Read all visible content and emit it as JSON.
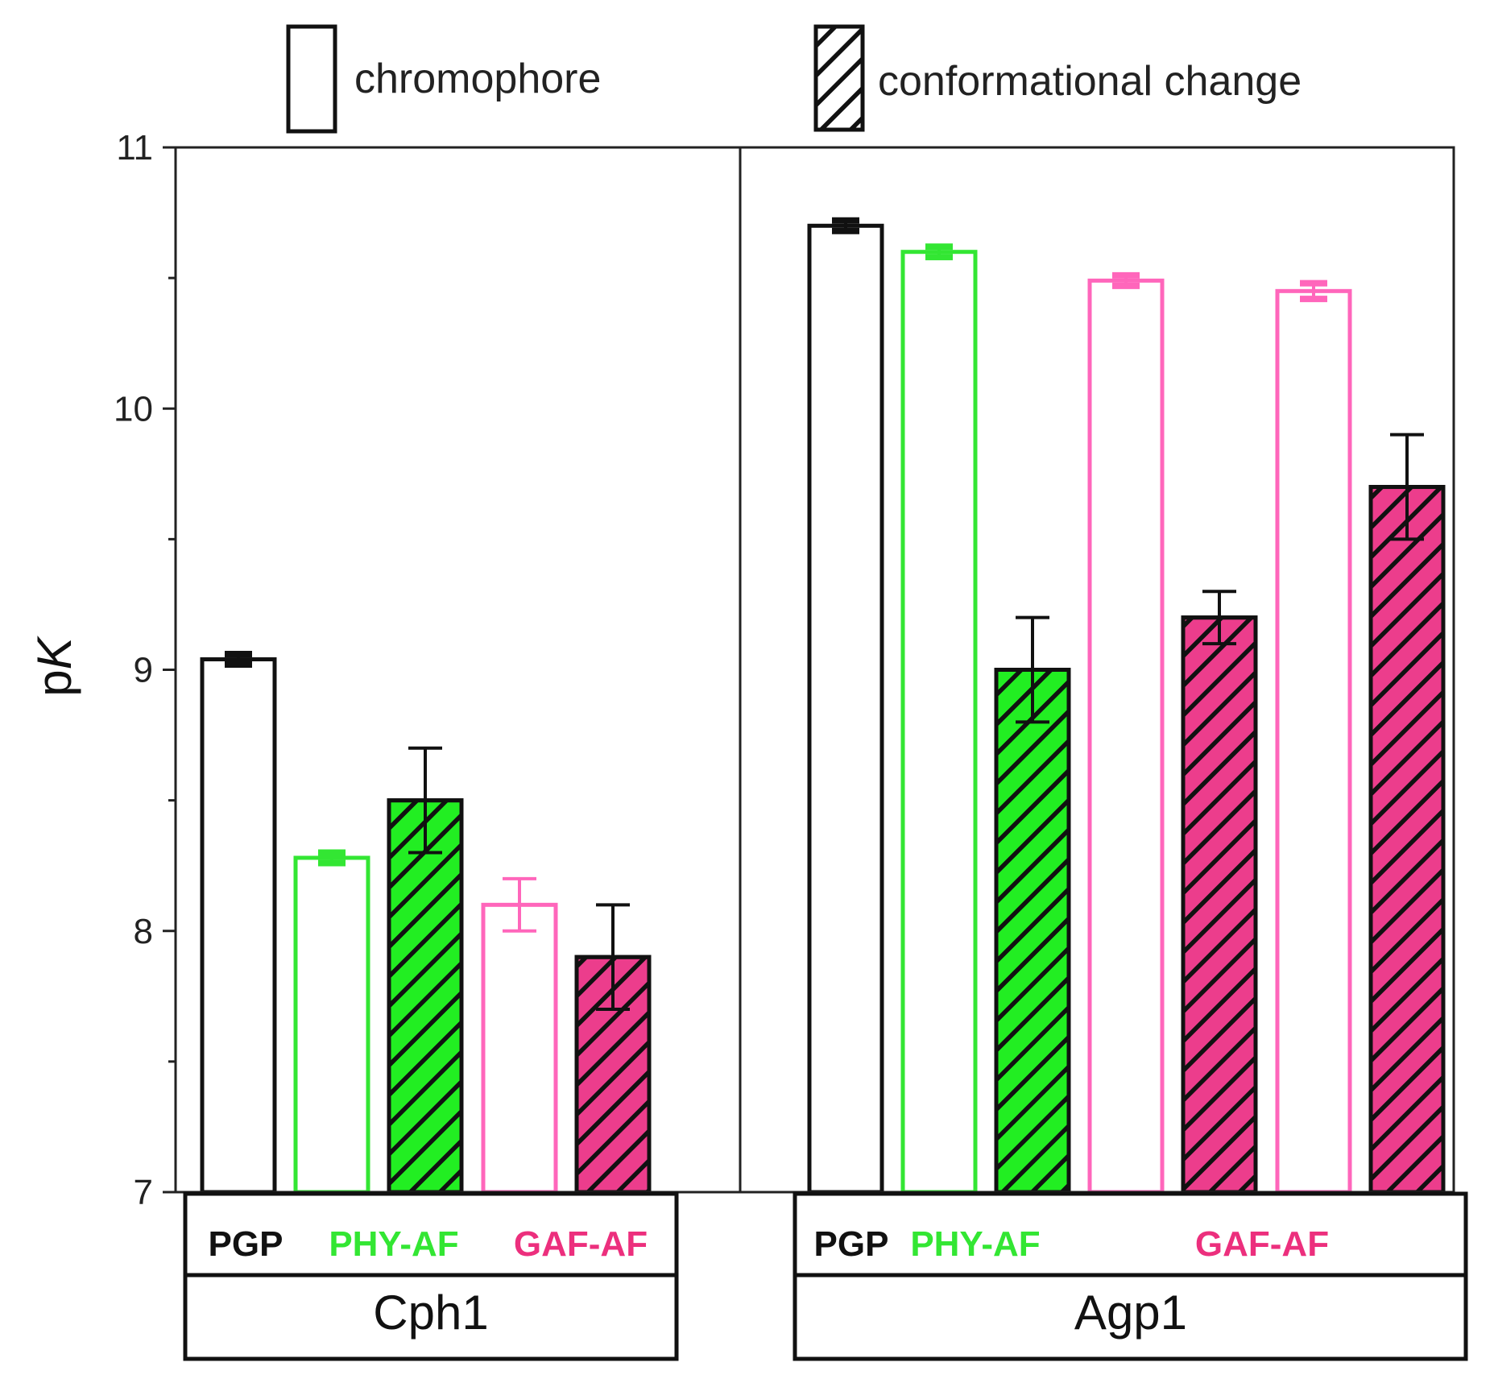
{
  "chart_data": {
    "type": "bar",
    "ylabel_prefix": "p",
    "ylabel_italic": "K",
    "ylim": [
      7,
      11
    ],
    "yticks": [
      7,
      8,
      9,
      10,
      11
    ],
    "ytick_labels": [
      "7",
      "8",
      "9",
      "10",
      "11"
    ],
    "legend": [
      {
        "label": "chromophore",
        "pattern": "open"
      },
      {
        "label": "conformational change",
        "pattern": "hatched"
      }
    ],
    "colors": {
      "PGP": "#111111",
      "PHY-AF": "#33e633",
      "GAF-AF": "#ec2f7d",
      "GAF-AF-outline": "#ff66bb",
      "PHY-AF-fill": "#22ee22",
      "GAF-AF-fill": "#ec3d8c"
    },
    "panels": [
      {
        "name": "Cph1",
        "category_labels": [
          {
            "text": "PGP",
            "color_key": "PGP"
          },
          {
            "text": "PHY-AF",
            "color_key": "PHY-AF"
          },
          {
            "text": "GAF-AF",
            "color_key": "GAF-AF"
          }
        ],
        "bars": [
          {
            "group": "PGP",
            "measure": "chromophore",
            "value": 9.04,
            "error": 0.02
          },
          {
            "group": "PHY-AF",
            "measure": "chromophore",
            "value": 8.28,
            "error": 0.02
          },
          {
            "group": "PHY-AF",
            "measure": "conformational change",
            "value": 8.5,
            "error": 0.2
          },
          {
            "group": "GAF-AF",
            "measure": "chromophore",
            "value": 8.1,
            "error": 0.1
          },
          {
            "group": "GAF-AF",
            "measure": "conformational change",
            "value": 7.9,
            "error": 0.2
          }
        ]
      },
      {
        "name": "Agp1",
        "category_labels": [
          {
            "text": "PGP",
            "color_key": "PGP"
          },
          {
            "text": "PHY-AF",
            "color_key": "PHY-AF"
          },
          {
            "text": "GAF-AF",
            "color_key": "GAF-AF"
          }
        ],
        "bars": [
          {
            "group": "PGP",
            "measure": "chromophore",
            "value": 10.7,
            "error": 0.02
          },
          {
            "group": "PHY-AF",
            "measure": "chromophore",
            "value": 10.6,
            "error": 0.02
          },
          {
            "group": "PHY-AF",
            "measure": "conformational change",
            "value": 9.0,
            "error": 0.2
          },
          {
            "group": "GAF-AF",
            "measure": "chromophore",
            "value": 10.49,
            "error": 0.02
          },
          {
            "group": "GAF-AF",
            "measure": "conformational change",
            "value": 9.2,
            "error": 0.1
          },
          {
            "group": "GAF-AF",
            "measure": "chromophore",
            "value": 10.45,
            "error": 0.03
          },
          {
            "group": "GAF-AF",
            "measure": "conformational change",
            "value": 9.7,
            "error": 0.2
          }
        ]
      }
    ]
  }
}
